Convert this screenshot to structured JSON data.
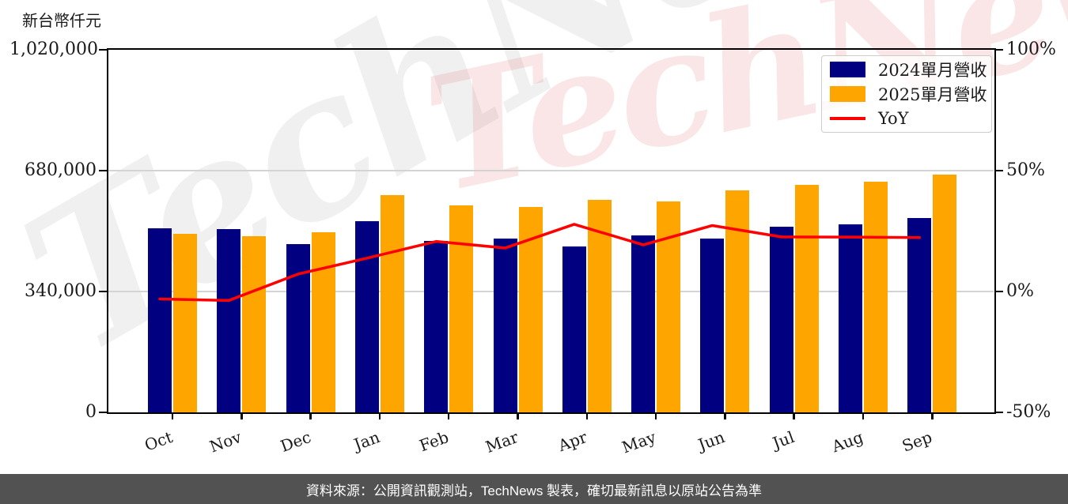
{
  "watermark": {
    "text": "TechNews"
  },
  "footer": {
    "text": "資料來源：公開資訊觀測站，TechNews 製表，確切最新訊息以原站公告為準"
  },
  "chart_data": {
    "type": "bar",
    "title": "",
    "unit_label": "新台幣仟元",
    "categories": [
      "Oct",
      "Nov",
      "Dec",
      "Jan",
      "Feb",
      "Mar",
      "Apr",
      "May",
      "Jun",
      "Jul",
      "Aug",
      "Sep"
    ],
    "series": [
      {
        "name": "2024單月營收",
        "type": "bar",
        "color": "#000080",
        "values": [
          518000,
          515000,
          473000,
          538000,
          482000,
          490000,
          467000,
          497000,
          490000,
          522000,
          530000,
          547000
        ]
      },
      {
        "name": "2025單月營收",
        "type": "bar",
        "color": "#FFA500",
        "values": [
          502000,
          496000,
          507000,
          612000,
          582000,
          578000,
          597000,
          593000,
          624000,
          640000,
          649000,
          669000
        ]
      },
      {
        "name": "YoY",
        "type": "line",
        "color": "#FF0000",
        "values_pct": [
          -3.1,
          -3.7,
          7.2,
          13.8,
          20.7,
          18.0,
          27.8,
          19.3,
          27.3,
          22.6,
          22.5,
          22.3
        ]
      }
    ],
    "left_axis": {
      "label": "新台幣仟元",
      "min": 0,
      "max": 1020000,
      "tick_labels": [
        "1,020,000",
        "680,000",
        "340,000",
        "0"
      ],
      "tick_values": [
        1020000,
        680000,
        340000,
        0
      ]
    },
    "right_axis": {
      "label": "YoY %",
      "min": -50,
      "max": 100,
      "tick_labels": [
        "100%",
        "50%",
        "0%",
        "-50%"
      ],
      "tick_values": [
        100,
        50,
        0,
        -50
      ]
    },
    "grid": true,
    "legend_position": "top-right"
  }
}
